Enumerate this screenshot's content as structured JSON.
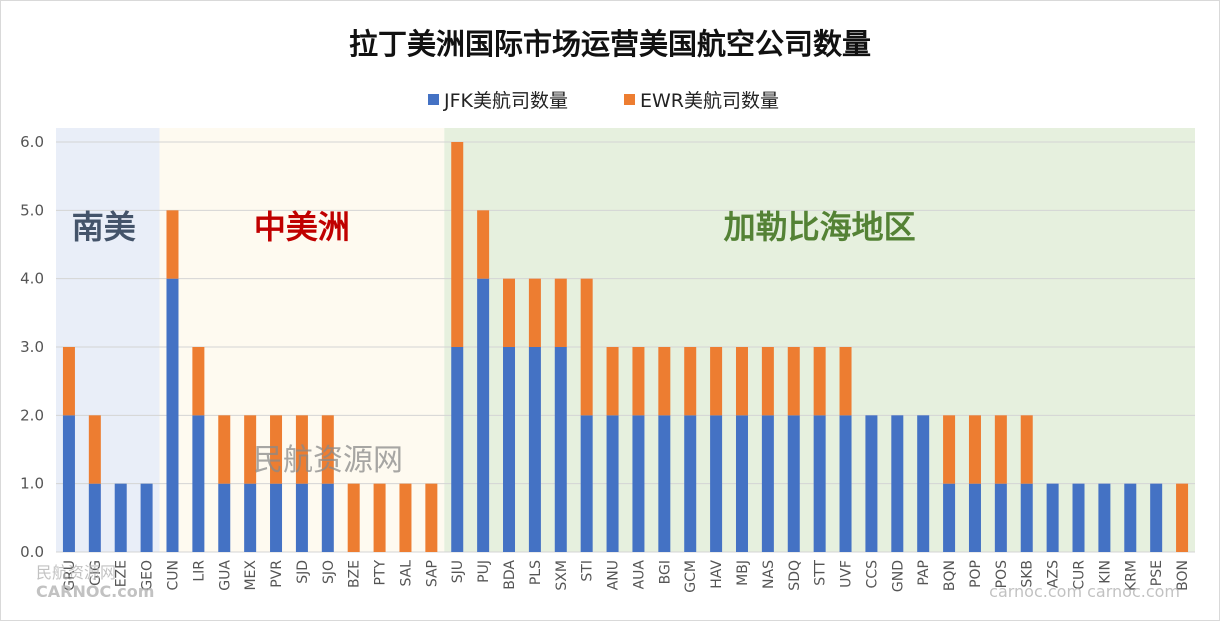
{
  "chart_data": {
    "type": "bar",
    "stacked": true,
    "title": "拉丁美洲国际市场运营美国航空公司数量",
    "legend_position": "top",
    "grid": true,
    "ylim": [
      0,
      6
    ],
    "yticks": [
      "0.0",
      "1.0",
      "2.0",
      "3.0",
      "4.0",
      "5.0",
      "6.0"
    ],
    "categories": [
      "GRU",
      "GIG",
      "EZE",
      "GEO",
      "CUN",
      "LIR",
      "GUA",
      "MEX",
      "PVR",
      "SJD",
      "SJO",
      "BZE",
      "PTY",
      "SAL",
      "SAP",
      "SJU",
      "PUJ",
      "BDA",
      "PLS",
      "SXM",
      "STI",
      "ANU",
      "AUA",
      "BGI",
      "GCM",
      "HAV",
      "MBJ",
      "NAS",
      "SDQ",
      "STT",
      "UVF",
      "CCS",
      "GND",
      "PAP",
      "BQN",
      "POP",
      "POS",
      "SKB",
      "AZS",
      "CUR",
      "KIN",
      "KRM",
      "PSE",
      "BON"
    ],
    "series": [
      {
        "name": "JFK美航司数量",
        "color": "#4472C4",
        "values": [
          2,
          1,
          1,
          1,
          4,
          2,
          1,
          1,
          1,
          1,
          1,
          0,
          0,
          0,
          0,
          3,
          4,
          3,
          3,
          3,
          2,
          2,
          2,
          2,
          2,
          2,
          2,
          2,
          2,
          2,
          2,
          2,
          2,
          2,
          1,
          1,
          1,
          1,
          1,
          1,
          1,
          1,
          1,
          0
        ]
      },
      {
        "name": "EWR美航司数量",
        "color": "#ED7D31",
        "values": [
          1,
          1,
          0,
          0,
          1,
          1,
          1,
          1,
          1,
          1,
          1,
          1,
          1,
          1,
          1,
          3,
          1,
          1,
          1,
          1,
          2,
          1,
          1,
          1,
          1,
          1,
          1,
          1,
          1,
          1,
          1,
          0,
          0,
          0,
          1,
          1,
          1,
          1,
          0,
          0,
          0,
          0,
          0,
          1
        ]
      }
    ],
    "regions": [
      {
        "label": "南美",
        "start_index": 0,
        "end_index": 3,
        "fill": "#E9EEF8",
        "label_color": "#44546A"
      },
      {
        "label": "中美洲",
        "start_index": 4,
        "end_index": 14,
        "fill": "#FEFAF0",
        "label_color": "#C00000"
      },
      {
        "label": "加勒比海地区",
        "start_index": 15,
        "end_index": 43,
        "fill": "#E6F0DE",
        "label_color": "#548235"
      }
    ]
  },
  "watermarks": {
    "center": "民航资源网",
    "bottom_left_cn": "民航资源网",
    "bottom_left_en": "CARNOC.com",
    "bottom_right_en": "carnoc.com  carnoc.com"
  }
}
